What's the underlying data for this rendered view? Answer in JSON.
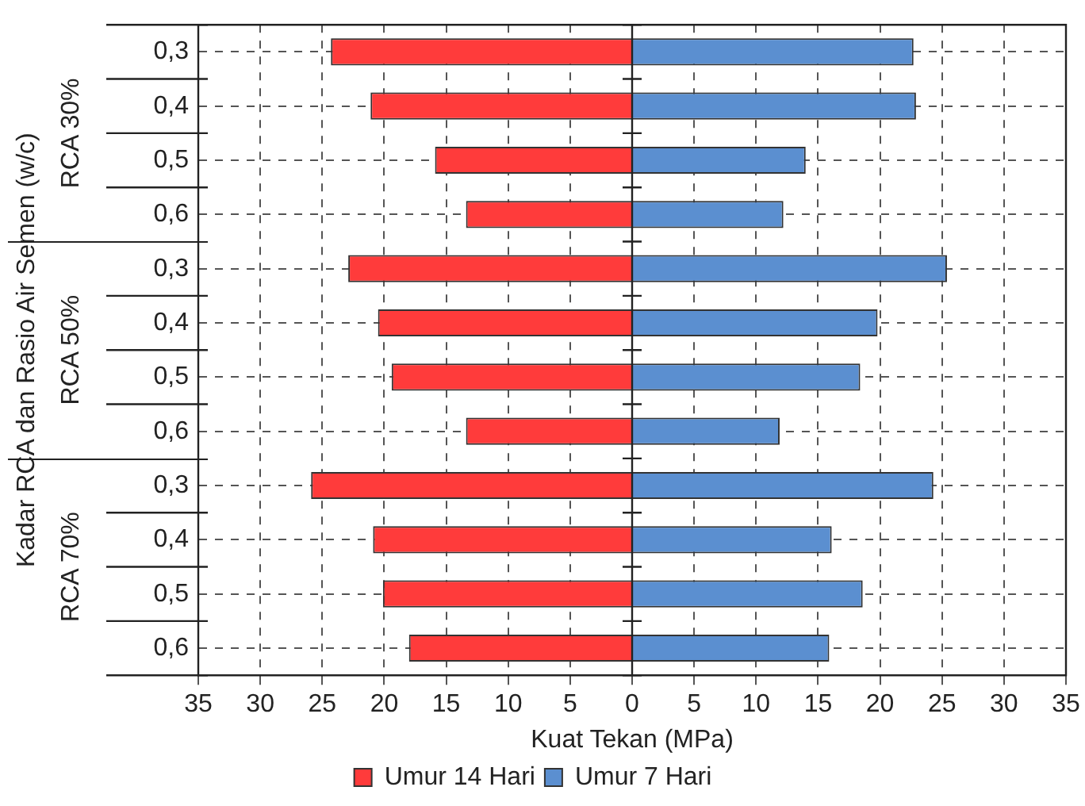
{
  "chart_data": {
    "type": "bar",
    "orientation": "horizontal",
    "stacked": true,
    "xlabel": "Kuat Tekan (MPa)",
    "ylabel": "Kadar RCA dan Rasio Air Semen (w/c)",
    "categories": [
      "0,3",
      "0,4",
      "0,5",
      "0,6",
      "0,3",
      "0,4",
      "0,5",
      "0,6",
      "0,3",
      "0,4",
      "0,5",
      "0,6"
    ],
    "annotations": [
      "RCA 30%",
      "RCA 50%",
      "RCA 70%"
    ],
    "series": [
      {
        "name": "Umur 14 Hari",
        "color": "#ff3b3b",
        "values": [
          -24.3,
          -21.1,
          -15.9,
          -13.4,
          -22.9,
          -20.5,
          -19.4,
          -13.4,
          -25.9,
          -20.9,
          -20.1,
          -18.0
        ]
      },
      {
        "name": "Umur 7 Hari",
        "color": "#5b8fd0",
        "values": [
          22.7,
          22.9,
          14.0,
          12.2,
          25.4,
          19.8,
          18.4,
          11.9,
          24.3,
          16.1,
          18.6,
          15.9
        ]
      }
    ],
    "xlim": [
      -35,
      35
    ],
    "xticks": [
      {
        "value": -35,
        "label": "35"
      },
      {
        "value": -30,
        "label": "30"
      },
      {
        "value": -25,
        "label": "25"
      },
      {
        "value": -20,
        "label": "20"
      },
      {
        "value": -15,
        "label": "15"
      },
      {
        "value": -10,
        "label": "10"
      },
      {
        "value": -5,
        "label": "5"
      },
      0,
      5,
      10,
      15,
      20,
      25,
      30,
      35
    ],
    "grid": true,
    "legend": "bottom"
  }
}
